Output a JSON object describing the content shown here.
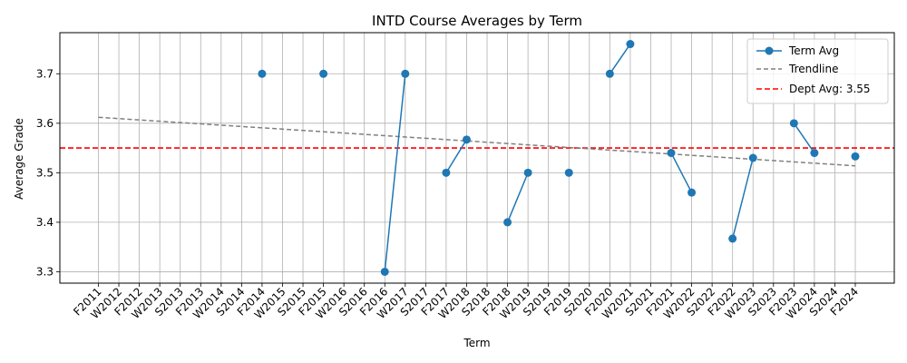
{
  "chart_data": {
    "type": "line",
    "title": "INTD Course Averages by Term",
    "xlabel": "Term",
    "ylabel": "Average Grade",
    "categories": [
      "F2011",
      "W2012",
      "F2012",
      "W2013",
      "S2013",
      "F2013",
      "W2014",
      "S2014",
      "F2014",
      "W2015",
      "S2015",
      "F2015",
      "W2016",
      "S2016",
      "F2016",
      "W2017",
      "S2017",
      "F2017",
      "W2018",
      "S2018",
      "F2018",
      "W2019",
      "S2019",
      "F2019",
      "S2020",
      "F2020",
      "W2021",
      "S2021",
      "F2021",
      "W2022",
      "S2022",
      "F2022",
      "W2023",
      "S2023",
      "F2023",
      "W2024",
      "S2024",
      "F2024"
    ],
    "series": [
      {
        "name": "Term Avg",
        "color": "#1f77b4",
        "values": [
          null,
          null,
          null,
          null,
          null,
          null,
          null,
          null,
          3.7,
          null,
          null,
          3.7,
          null,
          null,
          3.3,
          3.7,
          null,
          3.5,
          3.567,
          null,
          3.4,
          3.5,
          null,
          3.5,
          null,
          3.7,
          3.76,
          null,
          3.54,
          3.46,
          null,
          3.367,
          3.53,
          null,
          3.6,
          3.54,
          null,
          3.533
        ]
      },
      {
        "name": "Trendline",
        "color": "#808080",
        "style": "dashed",
        "start": 3.612,
        "end": 3.514
      }
    ],
    "reference_line": {
      "label": "Dept Avg: 3.55",
      "value": 3.55,
      "color": "#ff0000",
      "style": "dashed"
    },
    "yticks": [
      "3.3",
      "3.4",
      "3.5",
      "3.6",
      "3.7"
    ],
    "ylim": [
      3.277,
      3.783
    ],
    "grid": true,
    "legend_position": "top-right"
  }
}
